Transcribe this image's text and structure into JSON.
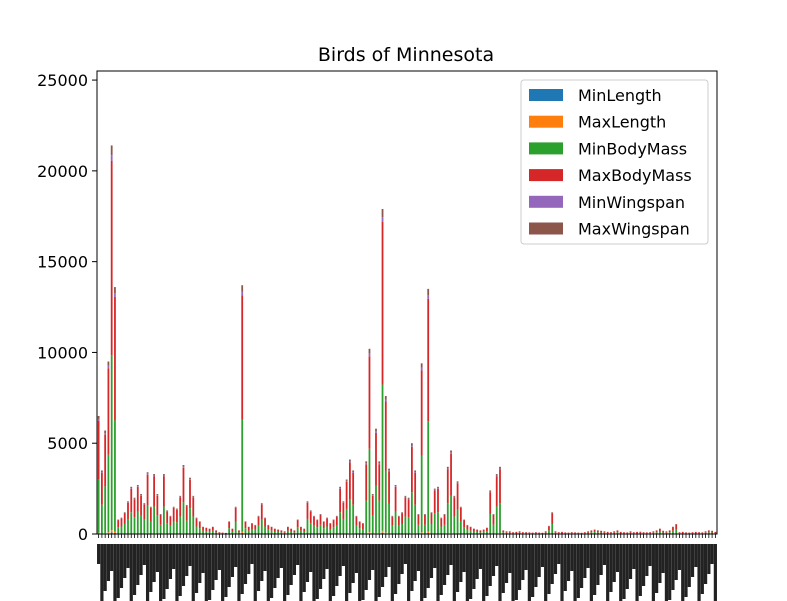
{
  "chart_data": {
    "type": "bar",
    "stacked": true,
    "title": "Birds of Minnesota",
    "xlabel": "",
    "ylabel": "",
    "ylim": [
      0,
      25500
    ],
    "yticks": [
      0,
      5000,
      10000,
      15000,
      20000,
      25000
    ],
    "ytick_labels": [
      "0",
      "5000",
      "10000",
      "15000",
      "20000",
      "25000"
    ],
    "grid": false,
    "legend_position": "top-right",
    "categories_note": "Individual bird names (about 180 categories) are rendered as an illegible overlapping mass of rotated labels; only the overall stacked totals are estimable.",
    "series": [
      {
        "name": "MinLength",
        "color": "#1f77b4"
      },
      {
        "name": "MaxLength",
        "color": "#ff7f0e"
      },
      {
        "name": "MinBodyMass",
        "color": "#2ca02c"
      },
      {
        "name": "MaxBodyMass",
        "color": "#d62728"
      },
      {
        "name": "MinWingspan",
        "color": "#9467bd"
      },
      {
        "name": "MaxWingspan",
        "color": "#8c564b"
      }
    ],
    "stack_totals_approx": [
      6500,
      3500,
      5700,
      9500,
      21400,
      13600,
      800,
      900,
      1200,
      1800,
      2600,
      2000,
      2700,
      2200,
      1700,
      3400,
      1500,
      3300,
      2200,
      1100,
      3300,
      1300,
      1000,
      1500,
      1400,
      2100,
      3800,
      1600,
      3100,
      2100,
      900,
      700,
      400,
      350,
      300,
      400,
      200,
      100,
      80,
      60,
      700,
      300,
      1500,
      200,
      13700,
      700,
      400,
      600,
      500,
      1000,
      1700,
      900,
      500,
      400,
      300,
      250,
      200,
      150,
      400,
      300,
      200,
      800,
      400,
      300,
      1800,
      1300,
      1000,
      800,
      1100,
      700,
      900,
      600,
      800,
      1000,
      2600,
      1800,
      3000,
      4100,
      3500,
      1000,
      700,
      600,
      4000,
      10200,
      2200,
      5800,
      4000,
      17900,
      7600,
      3600,
      1000,
      2700,
      1000,
      1200,
      2100,
      2000,
      5000,
      3500,
      1100,
      9400,
      1100,
      13500,
      1200,
      2500,
      2600,
      900,
      1100,
      3700,
      4600,
      2100,
      2900,
      1500,
      800,
      500,
      400,
      300,
      250,
      200,
      250,
      350,
      2400,
      1100,
      3300,
      3700,
      200,
      150,
      150,
      100,
      120,
      150,
      100,
      100,
      90,
      80,
      100,
      80,
      70,
      150,
      450,
      1200,
      150,
      100,
      120,
      90,
      80,
      100,
      90,
      80,
      70,
      100,
      150,
      200,
      250,
      200,
      180,
      150,
      120,
      100,
      150,
      200,
      120,
      100,
      90,
      150,
      100,
      120,
      130,
      100,
      90,
      100,
      150,
      200,
      300,
      180,
      150,
      200,
      400,
      550,
      100,
      120,
      90,
      80,
      100,
      120,
      100,
      90,
      150,
      200,
      180,
      120
    ]
  }
}
